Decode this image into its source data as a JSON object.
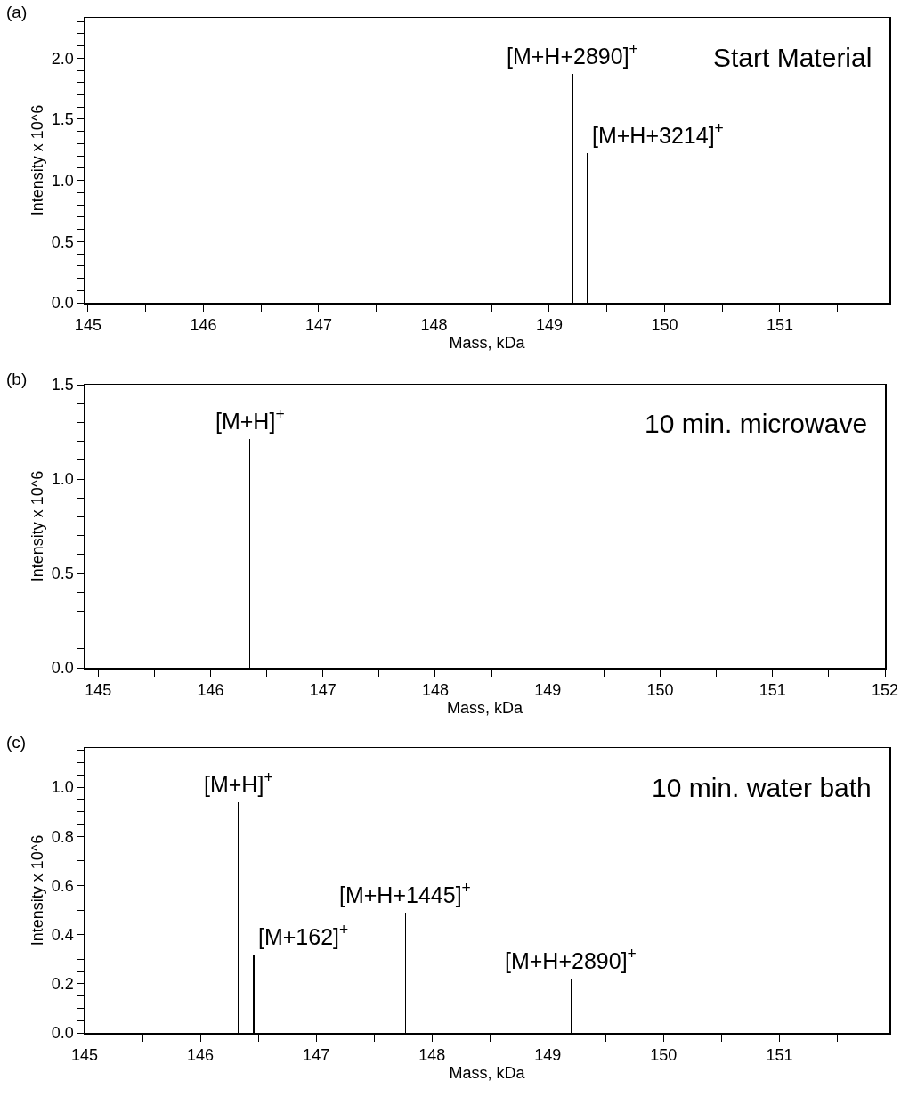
{
  "chart_data": [
    {
      "type": "bar",
      "xlabel": "Mass, kDa",
      "ylabel": "Intensity x 10^6",
      "x": [
        149.2,
        149.33
      ],
      "values": [
        1.87,
        1.22
      ],
      "color": "#000000",
      "xlim": [
        144.97,
        151.95
      ],
      "ylim": [
        0,
        2.33
      ],
      "xticks": [
        145,
        {
          "value": 145.5,
          "label": null
        },
        146,
        {
          "value": 146.5,
          "label": null
        },
        147,
        {
          "value": 147.5,
          "label": null
        },
        148,
        {
          "value": 148.5,
          "label": null
        },
        149,
        {
          "value": 149.5,
          "label": null
        },
        150,
        {
          "value": 150.5,
          "label": null
        },
        151,
        {
          "value": 151.5,
          "label": null
        }
      ],
      "yticks": [
        {
          "value": 0,
          "label": "0.0"
        },
        {
          "value": 0.1,
          "label": null
        },
        {
          "value": 0.2,
          "label": null
        },
        {
          "value": 0.3,
          "label": null
        },
        {
          "value": 0.4,
          "label": null
        },
        {
          "value": 0.5,
          "label": "0.5"
        },
        {
          "value": 0.6,
          "label": null
        },
        {
          "value": 0.7,
          "label": null
        },
        {
          "value": 0.8,
          "label": null
        },
        {
          "value": 0.9,
          "label": null
        },
        {
          "value": 1,
          "label": "1.0"
        },
        {
          "value": 1.1,
          "label": null
        },
        {
          "value": 1.2,
          "label": null
        },
        {
          "value": 1.3,
          "label": null
        },
        {
          "value": 1.4,
          "label": null
        },
        {
          "value": 1.5,
          "label": "1.5"
        },
        {
          "value": 1.6,
          "label": null
        },
        {
          "value": 1.7,
          "label": null
        },
        {
          "value": 1.8,
          "label": null
        },
        {
          "value": 1.9,
          "label": null
        },
        {
          "value": 2,
          "label": "2.0"
        },
        {
          "value": 2.1,
          "label": null
        },
        {
          "value": 2.2,
          "label": null
        },
        {
          "value": 2.3,
          "label": null
        }
      ],
      "annotations": [
        "(a)",
        "Start Material",
        {
          "text": "[M+H+2890]$^{+}$",
          "x": 149.2,
          "y": 1.87
        },
        {
          "text": "[M+H+3214]$^{+}$",
          "x": 149.33,
          "y": 1.22
        }
      ]
    },
    {
      "type": "bar",
      "xlabel": "Mass, kDa",
      "ylabel": "Intensity x 10^6",
      "x": [
        146.35
      ],
      "values": [
        1.21
      ],
      "color": "#000000",
      "xlim": [
        144.88,
        152
      ],
      "ylim": [
        0,
        1.5
      ],
      "xticks": [
        145,
        {
          "value": 145.5,
          "label": null
        },
        146,
        {
          "value": 146.5,
          "label": null
        },
        147,
        {
          "value": 147.5,
          "label": null
        },
        148,
        {
          "value": 148.5,
          "label": null
        },
        149,
        {
          "value": 149.5,
          "label": null
        },
        150,
        {
          "value": 150.5,
          "label": null
        },
        151,
        {
          "value": 151.5,
          "label": null
        },
        152
      ],
      "yticks": [
        {
          "value": 0,
          "label": "0.0"
        },
        {
          "value": 0.1,
          "label": null
        },
        {
          "value": 0.2,
          "label": null
        },
        {
          "value": 0.3,
          "label": null
        },
        {
          "value": 0.4,
          "label": null
        },
        {
          "value": 0.5,
          "label": "0.5"
        },
        {
          "value": 0.6,
          "label": null
        },
        {
          "value": 0.7,
          "label": null
        },
        {
          "value": 0.8,
          "label": null
        },
        {
          "value": 0.9,
          "label": null
        },
        {
          "value": 1,
          "label": "1.0"
        },
        {
          "value": 1.1,
          "label": null
        },
        {
          "value": 1.2,
          "label": null
        },
        {
          "value": 1.3,
          "label": null
        },
        {
          "value": 1.4,
          "label": null
        },
        {
          "value": 1.5,
          "label": "1.5"
        }
      ],
      "annotations": [
        "(b)",
        "10 min. microwave",
        {
          "text": "[M+H]$^{+}$",
          "x": 146.35,
          "y": 1.21
        }
      ]
    },
    {
      "type": "bar",
      "xlabel": "Mass, kDa",
      "ylabel": "Intensity x 10^6",
      "x": [
        146.33,
        146.46,
        147.77,
        149.2
      ],
      "values": [
        0.94,
        0.32,
        0.49,
        0.22
      ],
      "color": "#000000",
      "xlim": [
        145,
        151.95
      ],
      "ylim": [
        0,
        1.16
      ],
      "xticks": [
        145,
        {
          "value": 145.5,
          "label": null
        },
        146,
        {
          "value": 146.5,
          "label": null
        },
        147,
        {
          "value": 147.5,
          "label": null
        },
        148,
        {
          "value": 148.5,
          "label": null
        },
        149,
        {
          "value": 149.5,
          "label": null
        },
        150,
        {
          "value": 150.5,
          "label": null
        },
        151,
        {
          "value": 151.5,
          "label": null
        }
      ],
      "yticks": [
        {
          "value": 0,
          "label": "0.0"
        },
        {
          "value": 0.05,
          "label": null
        },
        {
          "value": 0.1,
          "label": null
        },
        {
          "value": 0.15,
          "label": null
        },
        {
          "value": 0.2,
          "label": "0.2"
        },
        {
          "value": 0.25,
          "label": null
        },
        {
          "value": 0.3,
          "label": null
        },
        {
          "value": 0.35,
          "label": null
        },
        {
          "value": 0.4,
          "label": "0.4"
        },
        {
          "value": 0.45,
          "label": null
        },
        {
          "value": 0.5,
          "label": null
        },
        {
          "value": 0.55,
          "label": null
        },
        {
          "value": 0.6,
          "label": "0.6"
        },
        {
          "value": 0.65,
          "label": null
        },
        {
          "value": 0.7,
          "label": null
        },
        {
          "value": 0.75,
          "label": null
        },
        {
          "value": 0.8,
          "label": "0.8"
        },
        {
          "value": 0.85,
          "label": null
        },
        {
          "value": 0.9,
          "label": null
        },
        {
          "value": 0.95,
          "label": null
        },
        {
          "value": 1,
          "label": "1.0"
        },
        {
          "value": 1.05,
          "label": null
        },
        {
          "value": 1.1,
          "label": null
        },
        {
          "value": 1.15,
          "label": null
        }
      ],
      "annotations": [
        "(c)",
        "10 min. water bath",
        {
          "text": "[M+H]$^{+}$",
          "x": 146.33,
          "y": 0.94
        },
        {
          "text": "[M+162]$^{+}$",
          "x": 146.46,
          "y": 0.32
        },
        {
          "text": "[M+H+1445]$^{+}$",
          "x": 147.77,
          "y": 0.49
        },
        {
          "text": "[M+H+2890]$^{+}$",
          "x": 149.2,
          "y": 0.22
        }
      ]
    }
  ]
}
